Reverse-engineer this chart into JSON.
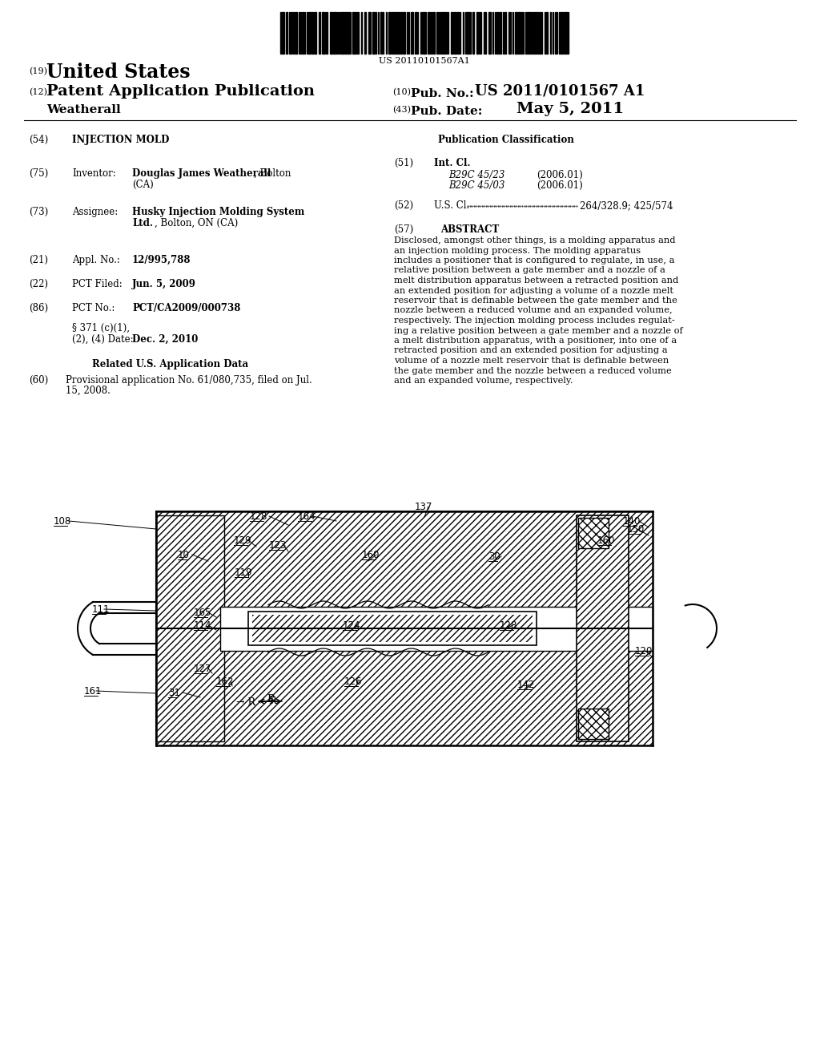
{
  "background_color": "#ffffff",
  "barcode_text": "US 20110101567A1",
  "title_19_num": "(19)",
  "title_19_text": "United States",
  "title_12_num": "(12)",
  "title_12_text": "Patent Application Publication",
  "title_10_num": "(10)",
  "title_10_label": "Pub. No.:",
  "title_10_value": "US 2011/0101567 A1",
  "title_43_num": "(43)",
  "title_43_label": "Pub. Date:",
  "title_43_value": "May 5, 2011",
  "author_name": "Weatherall",
  "f54_num": "(54)",
  "f54_val": "INJECTION MOLD",
  "f75_num": "(75)",
  "f75_name": "Inventor:",
  "f75_bold": "Douglas James Weatherall",
  "f75_rest": ", Bolton",
  "f75_ca": "(CA)",
  "f73_num": "(73)",
  "f73_name": "Assignee:",
  "f73_bold1": "Husky Injection Molding System",
  "f73_bold2": "Ltd.",
  "f73_rest": ", Bolton, ON (CA)",
  "f21_num": "(21)",
  "f21_name": "Appl. No.:",
  "f21_val": "12/995,788",
  "f22_num": "(22)",
  "f22_name": "PCT Filed:",
  "f22_val": "Jun. 5, 2009",
  "f86_num": "(86)",
  "f86_name": "PCT No.:",
  "f86_val": "PCT/CA2009/000738",
  "f86b_line1": "§ 371 (c)(1),",
  "f86b_line2": "(2), (4) Date:",
  "f86b_date": "Dec. 2, 2010",
  "related_header": "Related U.S. Application Data",
  "f60_num": "(60)",
  "f60_line1": "Provisional application No. 61/080,735, filed on Jul.",
  "f60_line2": "15, 2008.",
  "pub_class_header": "Publication Classification",
  "f51_num": "(51)",
  "f51_name": "Int. Cl.",
  "f51_c1": "B29C 45/23",
  "f51_d1": "(2006.01)",
  "f51_c2": "B29C 45/03",
  "f51_d2": "(2006.01)",
  "f52_num": "(52)",
  "f52_name": "U.S. Cl.",
  "f52_val": "264/328.9; 425/574",
  "f57_num": "(57)",
  "f57_name": "ABSTRACT",
  "abstract_lines": [
    "Disclosed, amongst other things, is a molding apparatus and",
    "an injection molding process. The molding apparatus",
    "includes a positioner that is configured to regulate, in use, a",
    "relative position between a gate member and a nozzle of a",
    "melt distribution apparatus between a retracted position and",
    "an extended position for adjusting a volume of a nozzle melt",
    "reservoir that is definable between the gate member and the",
    "nozzle between a reduced volume and an expanded volume,",
    "respectively. The injection molding process includes regulat-",
    "ing a relative position between a gate member and a nozzle of",
    "a melt distribution apparatus, with a positioner, into one of a",
    "retracted position and an extended position for adjusting a",
    "volume of a nozzle melt reservoir that is definable between",
    "the gate member and the nozzle between a reduced volume",
    "and an expanded volume, respectively."
  ]
}
